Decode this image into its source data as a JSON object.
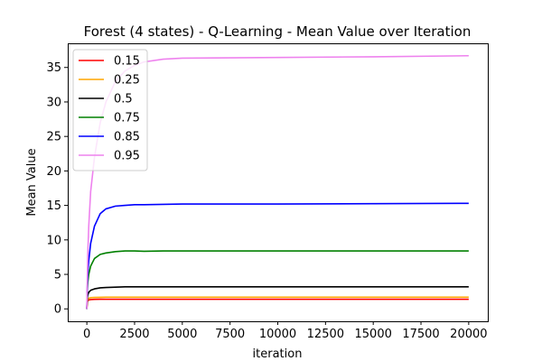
{
  "chart_data": {
    "type": "line",
    "title": "Forest (4 states) - Q-Learning - Mean Value over Iteration",
    "xlabel": "iteration",
    "ylabel": "Mean Value",
    "xlim": [
      -1000,
      21000
    ],
    "ylim": [
      -1.8,
      38.5
    ],
    "xticks": [
      0,
      2500,
      5000,
      7500,
      10000,
      12500,
      15000,
      17500,
      20000
    ],
    "yticks": [
      0,
      5,
      10,
      15,
      20,
      25,
      30,
      35
    ],
    "grid": false,
    "legend_position": "top-left",
    "series": [
      {
        "name": "0.15",
        "color": "#ff0000",
        "x": [
          0,
          20,
          50,
          100,
          200,
          400,
          700,
          1000,
          1500,
          2000,
          3000,
          5000,
          10000,
          15000,
          20000
        ],
        "y": [
          0,
          0.9,
          1.2,
          1.3,
          1.35,
          1.38,
          1.4,
          1.4,
          1.4,
          1.4,
          1.4,
          1.4,
          1.4,
          1.4,
          1.4
        ]
      },
      {
        "name": "0.25",
        "color": "#ffa500",
        "x": [
          0,
          20,
          50,
          100,
          200,
          400,
          700,
          1000,
          1500,
          2000,
          3000,
          5000,
          10000,
          15000,
          20000
        ],
        "y": [
          0,
          1.1,
          1.4,
          1.55,
          1.62,
          1.66,
          1.68,
          1.7,
          1.7,
          1.7,
          1.7,
          1.7,
          1.7,
          1.7,
          1.7
        ]
      },
      {
        "name": "0.5",
        "color": "#000000",
        "x": [
          0,
          20,
          50,
          100,
          200,
          400,
          700,
          1000,
          1500,
          2000,
          3000,
          5000,
          10000,
          15000,
          20000
        ],
        "y": [
          0,
          1.5,
          2.0,
          2.4,
          2.7,
          2.9,
          3.05,
          3.1,
          3.15,
          3.2,
          3.2,
          3.2,
          3.2,
          3.2,
          3.2
        ]
      },
      {
        "name": "0.75",
        "color": "#008000",
        "x": [
          0,
          20,
          50,
          100,
          200,
          400,
          700,
          1000,
          1500,
          2000,
          2500,
          3000,
          4000,
          5000,
          10000,
          15000,
          20000
        ],
        "y": [
          0,
          2.5,
          3.8,
          5.0,
          6.2,
          7.3,
          7.9,
          8.1,
          8.3,
          8.4,
          8.4,
          8.35,
          8.4,
          8.4,
          8.4,
          8.4,
          8.4
        ]
      },
      {
        "name": "0.85",
        "color": "#0000ff",
        "x": [
          0,
          20,
          50,
          100,
          200,
          400,
          700,
          1000,
          1500,
          2000,
          2500,
          3000,
          4000,
          5000,
          10000,
          15000,
          20000
        ],
        "y": [
          0,
          3.0,
          5.0,
          7.0,
          9.5,
          12.0,
          13.8,
          14.5,
          14.9,
          15.0,
          15.1,
          15.1,
          15.15,
          15.2,
          15.2,
          15.25,
          15.3
        ]
      },
      {
        "name": "0.95",
        "color": "#ee82ee",
        "x": [
          0,
          20,
          50,
          100,
          200,
          400,
          700,
          1000,
          1500,
          2000,
          2500,
          3000,
          4000,
          5000,
          7500,
          10000,
          15000,
          20000
        ],
        "y": [
          0,
          4.0,
          8.0,
          12.0,
          17.0,
          22.0,
          27.0,
          30.0,
          33.0,
          34.5,
          35.3,
          35.8,
          36.2,
          36.35,
          36.4,
          36.45,
          36.55,
          36.7
        ]
      }
    ]
  }
}
